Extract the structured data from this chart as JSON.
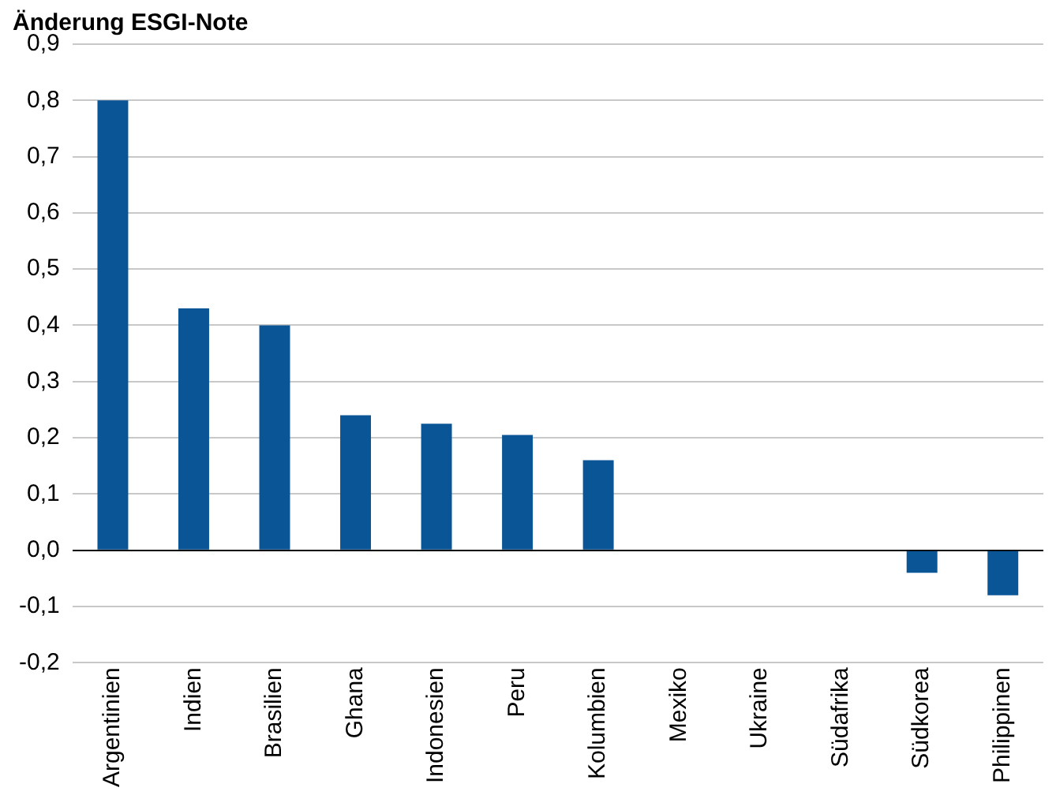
{
  "chart_data": {
    "type": "bar",
    "title": "Änderung ESGI-Note",
    "categories": [
      "Argentinien",
      "Indien",
      "Brasilien",
      "Ghana",
      "Indonesien",
      "Peru",
      "Kolumbien",
      "Mexiko",
      "Ukraine",
      "Südafrika",
      "Südkorea",
      "Philippinen"
    ],
    "values": [
      0.8,
      0.43,
      0.4,
      0.24,
      0.225,
      0.205,
      0.16,
      0,
      0,
      0,
      -0.04,
      -0.08
    ],
    "color": "#0a5596",
    "ylim": [
      -0.2,
      0.9
    ],
    "yticks": [
      {
        "value": -0.2,
        "label": "-0,2"
      },
      {
        "value": -0.1,
        "label": "-0,1"
      },
      {
        "value": 0,
        "label": "0,0"
      },
      {
        "value": 0.1,
        "label": "0,1"
      },
      {
        "value": 0.2,
        "label": "0,2"
      },
      {
        "value": 0.3,
        "label": "0,3"
      },
      {
        "value": 0.4,
        "label": "0,4"
      },
      {
        "value": 0.5,
        "label": "0,5"
      },
      {
        "value": 0.6,
        "label": "0,6"
      },
      {
        "value": 0.7,
        "label": "0,7"
      },
      {
        "value": 0.8,
        "label": "0,8"
      },
      {
        "value": 0.9,
        "label": "0,9"
      }
    ],
    "grid": "y"
  }
}
